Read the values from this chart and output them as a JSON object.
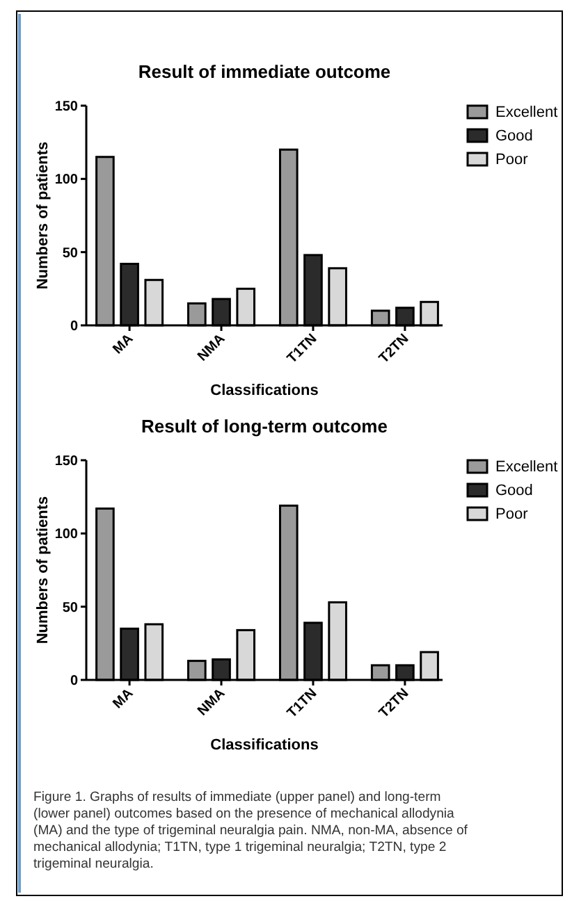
{
  "chart_data": [
    {
      "type": "bar",
      "title": "Result of immediate outcome",
      "xlabel": "Classifications",
      "ylabel": "Numbers of patients",
      "categories": [
        "MA",
        "NMA",
        "T1TN",
        "T2TN"
      ],
      "series": [
        {
          "name": "Excellent",
          "color": "#9a9a9a",
          "values": [
            115,
            15,
            120,
            10
          ]
        },
        {
          "name": "Good",
          "color": "#2b2b2b",
          "values": [
            42,
            18,
            48,
            12
          ]
        },
        {
          "name": "Poor",
          "color": "#d8d8d8",
          "values": [
            31,
            25,
            39,
            16
          ]
        }
      ],
      "ylim": [
        0,
        150
      ],
      "yticks": [
        0,
        50,
        100,
        150
      ],
      "legend": "right"
    },
    {
      "type": "bar",
      "title": "Result of long-term outcome",
      "xlabel": "Classifications",
      "ylabel": "Numbers of patients",
      "categories": [
        "MA",
        "NMA",
        "T1TN",
        "T2TN"
      ],
      "series": [
        {
          "name": "Excellent",
          "color": "#9a9a9a",
          "values": [
            117,
            13,
            119,
            10
          ]
        },
        {
          "name": "Good",
          "color": "#2b2b2b",
          "values": [
            35,
            14,
            39,
            10
          ]
        },
        {
          "name": "Poor",
          "color": "#d8d8d8",
          "values": [
            38,
            34,
            53,
            19
          ]
        }
      ],
      "ylim": [
        0,
        150
      ],
      "yticks": [
        0,
        50,
        100,
        150
      ],
      "legend": "right",
      "annotations": [
        "Figure 1. Graphs of results of immediate (upper panel) and long-term (lower panel) outcomes based on the presence of mechanical allodynia (MA) and the type of trigeminal neuralgia pain. NMA, non-MA, absence of mechanical allodynia; T1TN, type 1 trigeminal neuralgia; T2TN, type 2 trigeminal neuralgia."
      ]
    }
  ]
}
